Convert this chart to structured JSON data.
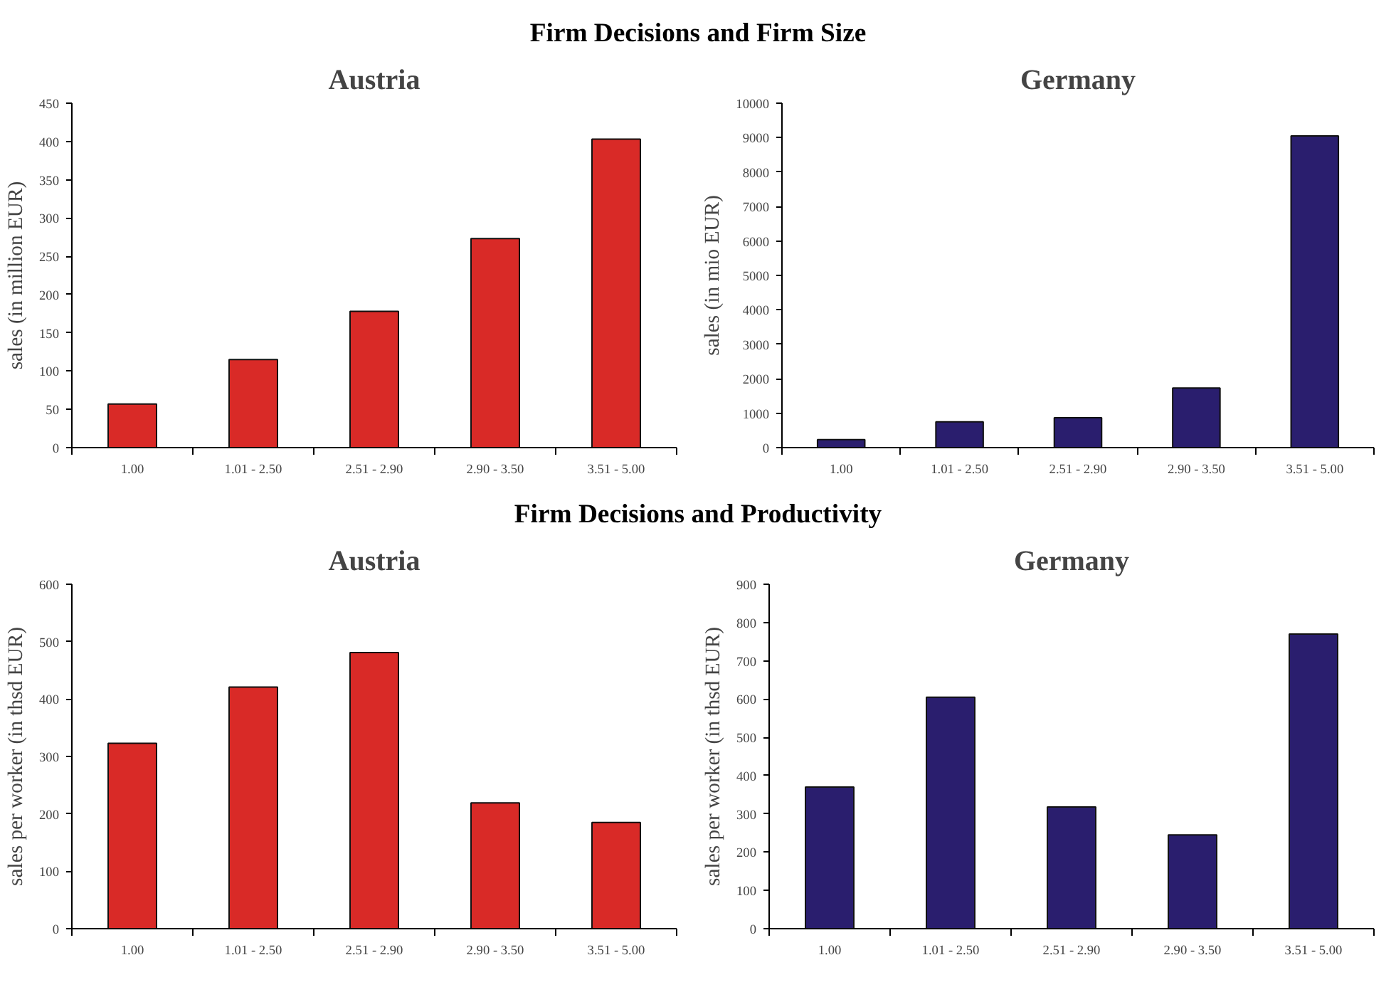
{
  "chart_data": [
    {
      "type": "bar",
      "annotations": [
        "Firm Decisions and Firm Size"
      ],
      "title": "Austria",
      "ylabel": "sales (in million EUR)",
      "categories": [
        "1.00",
        "1.01 - 2.50",
        "2.51 - 2.90",
        "2.90 - 3.50",
        "3.51 - 5.00"
      ],
      "values": [
        57,
        115,
        178,
        273,
        403
      ],
      "color": "#d92a27",
      "ylim": [
        0,
        450
      ],
      "yticks": [
        0,
        50,
        100,
        150,
        200,
        250,
        300,
        350,
        400,
        450
      ]
    },
    {
      "type": "bar",
      "title": "Germany",
      "ylabel": "sales (in mio EUR)",
      "categories": [
        "1.00",
        "1.01 - 2.50",
        "2.51 - 2.90",
        "2.90 - 3.50",
        "3.51 - 5.00"
      ],
      "values": [
        230,
        750,
        870,
        1730,
        9050
      ],
      "color": "#2a1e6e",
      "ylim": [
        0,
        10000
      ],
      "yticks": [
        0,
        1000,
        2000,
        3000,
        4000,
        5000,
        6000,
        7000,
        8000,
        9000,
        10000
      ]
    },
    {
      "type": "bar",
      "annotations": [
        "Firm Decisions and Productivity"
      ],
      "title": "Austria",
      "ylabel": "sales per worker (in thsd EUR)",
      "categories": [
        "1.00",
        "1.01 - 2.50",
        "2.51 - 2.90",
        "2.90 - 3.50",
        "3.51 - 5.00"
      ],
      "values": [
        323,
        421,
        481,
        219,
        185
      ],
      "color": "#d92a27",
      "ylim": [
        0,
        600
      ],
      "yticks": [
        0,
        100,
        200,
        300,
        400,
        500,
        600
      ]
    },
    {
      "type": "bar",
      "title": "Germany",
      "ylabel": "sales per worker (in thsd EUR)",
      "categories": [
        "1.00",
        "1.01 - 2.50",
        "2.51 - 2.90",
        "2.90 - 3.50",
        "3.51 - 5.00"
      ],
      "values": [
        370,
        605,
        318,
        245,
        770
      ],
      "color": "#2a1e6e",
      "ylim": [
        0,
        900
      ],
      "yticks": [
        0,
        100,
        200,
        300,
        400,
        500,
        600,
        700,
        800,
        900
      ]
    }
  ]
}
